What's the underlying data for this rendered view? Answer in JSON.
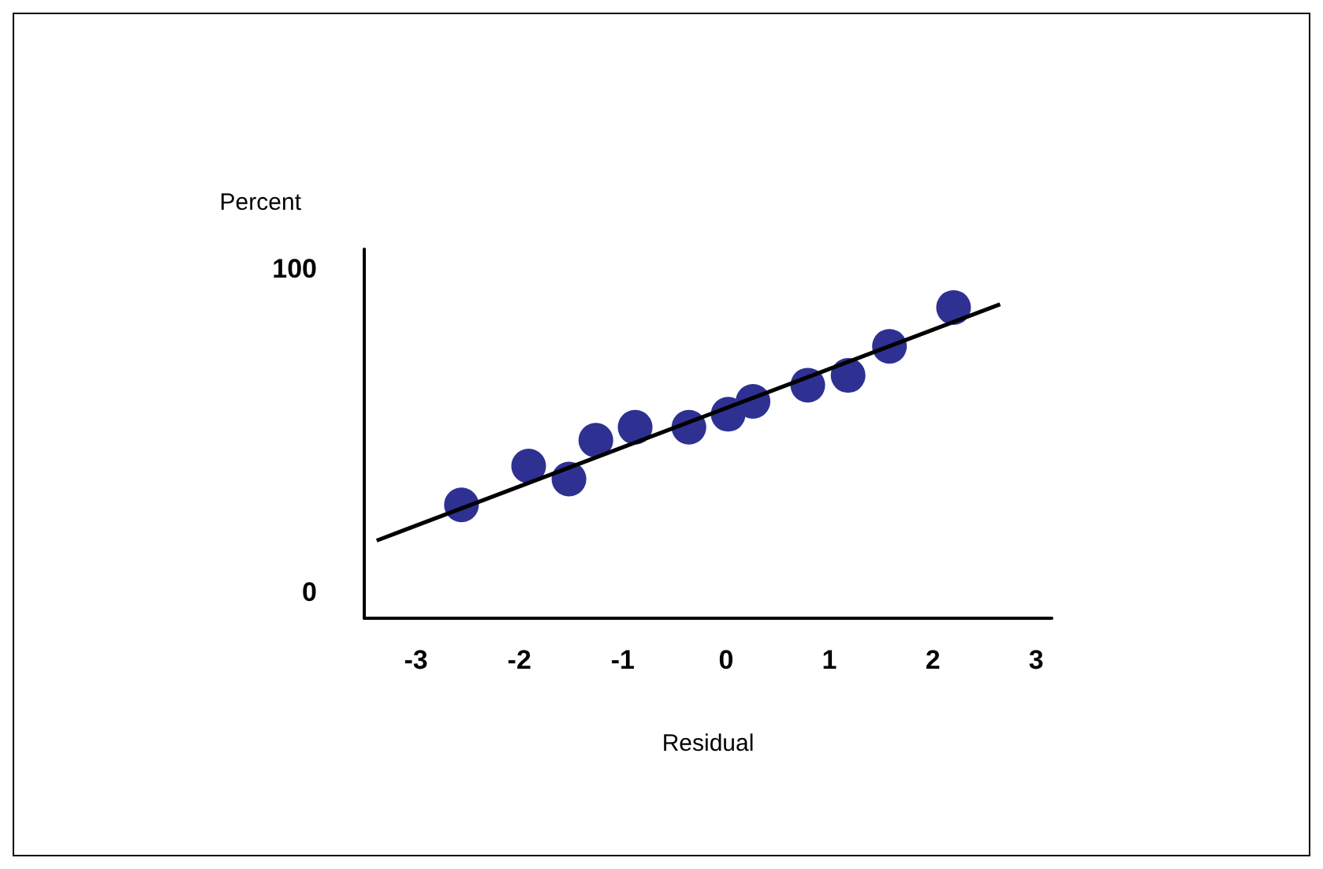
{
  "chart_data": {
    "type": "scatter",
    "xlabel": "Residual",
    "ylabel": "Percent",
    "xlim": [
      -3.5,
      3.15
    ],
    "ylim": [
      -8,
      106
    ],
    "xticks": [
      -3,
      -2,
      -1,
      0,
      1,
      2,
      3
    ],
    "yticks": [
      0,
      100
    ],
    "grid": false,
    "series": [
      {
        "type": "line",
        "color": "#000000",
        "marker": "none",
        "line_style": "solid",
        "x": [
          -3.38,
          2.65
        ],
        "values": [
          16,
          89
        ]
      },
      {
        "color": "#2e3192",
        "marker": "circle",
        "x": [
          -2.56,
          -1.91,
          -1.52,
          -1.26,
          -0.88,
          -0.36,
          0.02,
          0.26,
          0.79,
          1.18,
          1.58,
          2.2
        ],
        "values": [
          27,
          39,
          35,
          47,
          51,
          51,
          55,
          59,
          64,
          67,
          76,
          88
        ]
      }
    ]
  }
}
